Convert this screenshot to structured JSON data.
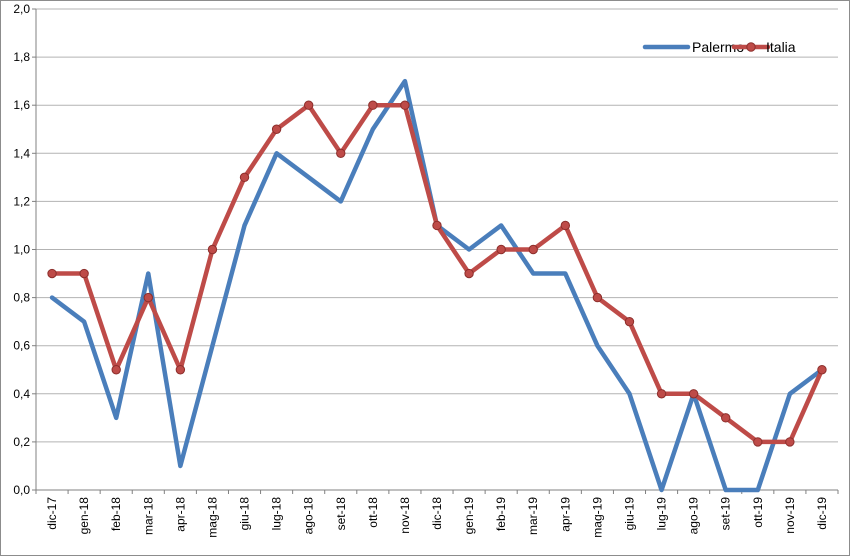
{
  "chart_data": {
    "type": "line",
    "title": "",
    "xlabel": "",
    "ylabel": "",
    "ylim": [
      0,
      2
    ],
    "y_ticks": [
      "0,0",
      "0,2",
      "0,4",
      "0,6",
      "0,8",
      "1,0",
      "1,2",
      "1,4",
      "1,6",
      "1,8",
      "2,0"
    ],
    "grid": "horizontal",
    "legend_position": "top-right",
    "categories": [
      "dic-17",
      "gen-18",
      "feb-18",
      "mar-18",
      "apr-18",
      "mag-18",
      "giu-18",
      "lug-18",
      "ago-18",
      "set-18",
      "ott-18",
      "nov-18",
      "dic-18",
      "gen-19",
      "feb-19",
      "mar-19",
      "apr-19",
      "mag-19",
      "giu-19",
      "lug-19",
      "ago-19",
      "set-19",
      "ott-19",
      "nov-19",
      "dic-19"
    ],
    "series": [
      {
        "name": "Palermo",
        "color": "#4a7ebb",
        "markers": false,
        "values": [
          0.8,
          0.7,
          0.3,
          0.9,
          0.1,
          0.6,
          1.1,
          1.4,
          1.3,
          1.2,
          1.5,
          1.7,
          1.1,
          1.0,
          1.1,
          0.9,
          0.9,
          0.6,
          0.4,
          0.0,
          0.4,
          0.0,
          0.0,
          0.4,
          0.5
        ]
      },
      {
        "name": "Italia",
        "color": "#be4b48",
        "markers": true,
        "values": [
          0.9,
          0.9,
          0.5,
          0.8,
          0.5,
          1.0,
          1.3,
          1.5,
          1.6,
          1.4,
          1.6,
          1.6,
          1.1,
          0.9,
          1.0,
          1.0,
          1.1,
          0.8,
          0.7,
          0.4,
          0.4,
          0.3,
          0.2,
          0.2,
          0.5
        ]
      }
    ]
  }
}
